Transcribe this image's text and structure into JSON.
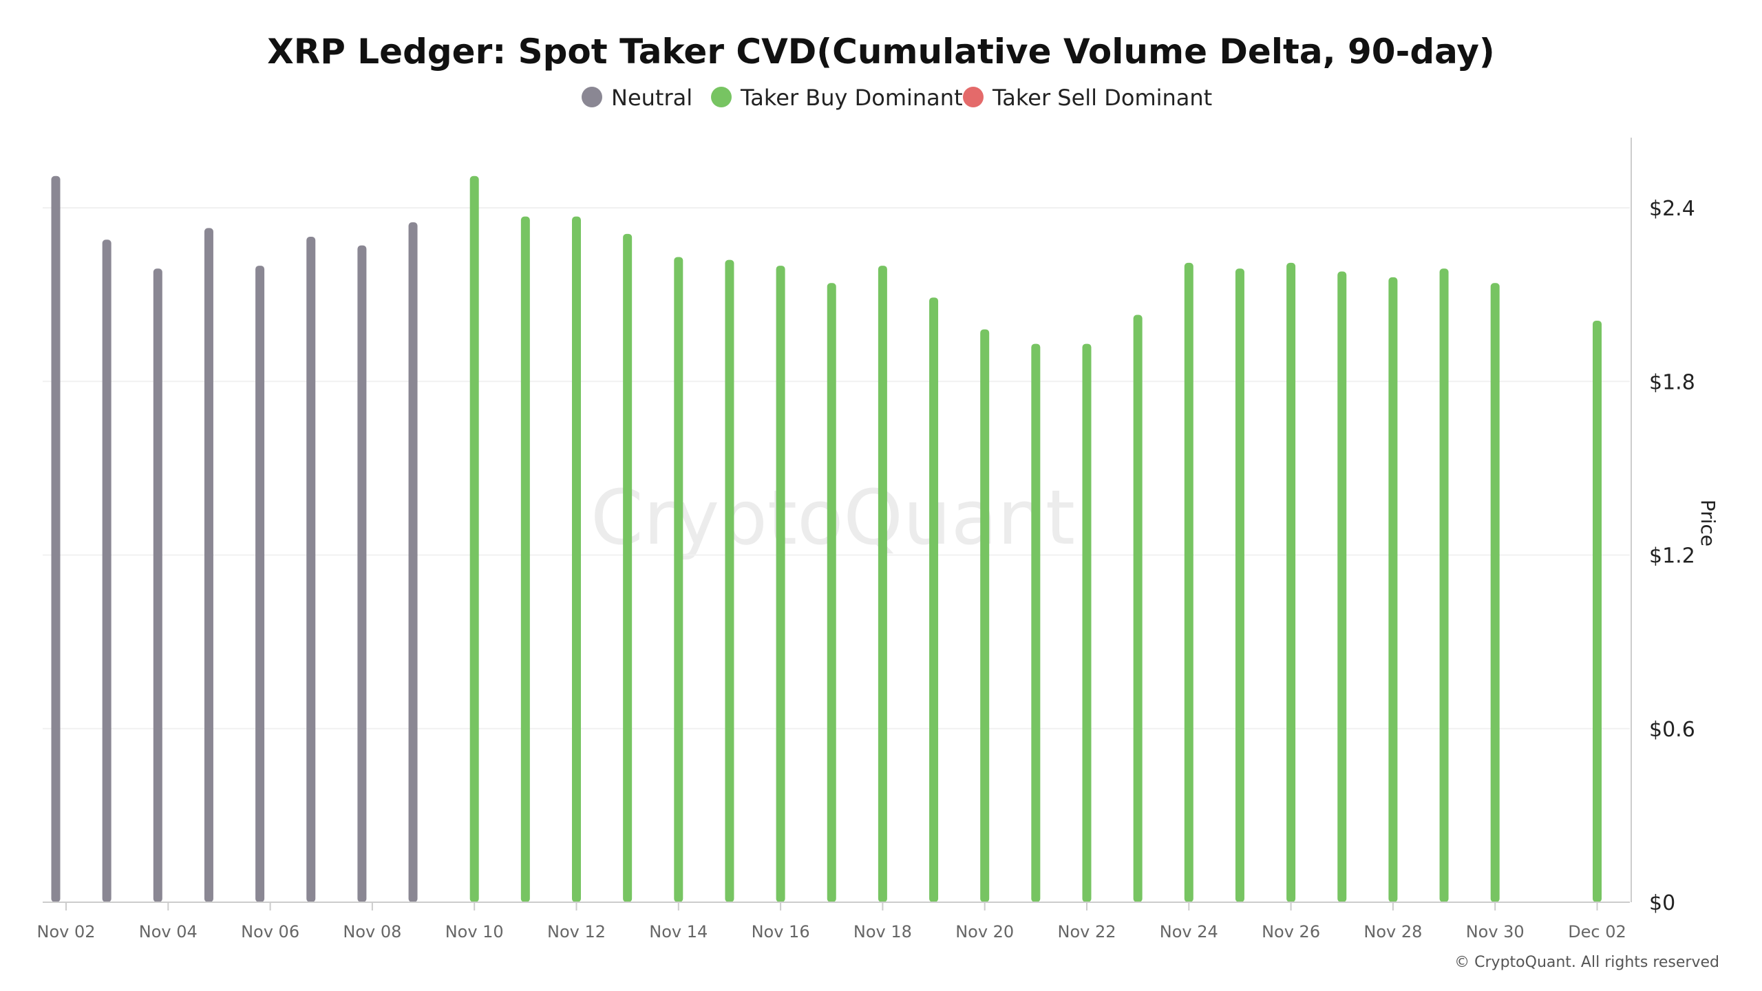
{
  "chart_data": {
    "type": "bar",
    "title": "XRP Ledger: Spot Taker CVD(Cumulative Volume Delta, 90-day)",
    "ylabel": "Price",
    "ylim": [
      0,
      2.64
    ],
    "yticks": [
      0,
      0.6,
      1.2,
      1.8,
      2.4
    ],
    "ytick_labels": [
      "$0",
      "$0.6",
      "$1.2",
      "$1.8",
      "$2.4"
    ],
    "y_axis_side": "right",
    "grid": true,
    "legend_placement": "top-center",
    "legend": [
      {
        "name": "Neutral",
        "color": "#8a8793"
      },
      {
        "name": "Taker Buy Dominant",
        "color": "#77c462"
      },
      {
        "name": "Taker Sell Dominant",
        "color": "#e46a6a"
      }
    ],
    "xtick_labels": [
      "Nov 02",
      "Nov 04",
      "Nov 06",
      "Nov 08",
      "Nov 10",
      "Nov 12",
      "Nov 14",
      "Nov 16",
      "Nov 18",
      "Nov 20",
      "Nov 22",
      "Nov 24",
      "Nov 26",
      "Nov 28",
      "Nov 30",
      "Dec 02"
    ],
    "categories": [
      "Nov 02",
      "Nov 03",
      "Nov 04",
      "Nov 05",
      "Nov 06",
      "Nov 07",
      "Nov 08",
      "Nov 09",
      "Nov 10",
      "Nov 11",
      "Nov 12",
      "Nov 13",
      "Nov 14",
      "Nov 15",
      "Nov 16",
      "Nov 17",
      "Nov 18",
      "Nov 19",
      "Nov 20",
      "Nov 21",
      "Nov 22",
      "Nov 23",
      "Nov 24",
      "Nov 25",
      "Nov 26",
      "Nov 27",
      "Nov 28",
      "Nov 29",
      "Nov 30",
      "Dec 01",
      "Dec 02"
    ],
    "values": [
      2.51,
      2.29,
      2.19,
      2.33,
      2.2,
      2.3,
      2.27,
      2.35,
      2.51,
      2.37,
      2.37,
      2.31,
      2.23,
      2.22,
      2.2,
      2.14,
      2.2,
      2.09,
      1.98,
      1.93,
      1.93,
      2.03,
      2.21,
      2.19,
      2.21,
      2.18,
      2.16,
      2.19,
      2.14,
      null,
      2.01
    ],
    "states": [
      "Neutral",
      "Neutral",
      "Neutral",
      "Neutral",
      "Neutral",
      "Neutral",
      "Neutral",
      "Neutral",
      "Taker Buy Dominant",
      "Taker Buy Dominant",
      "Taker Buy Dominant",
      "Taker Buy Dominant",
      "Taker Buy Dominant",
      "Taker Buy Dominant",
      "Taker Buy Dominant",
      "Taker Buy Dominant",
      "Taker Buy Dominant",
      "Taker Buy Dominant",
      "Taker Buy Dominant",
      "Taker Buy Dominant",
      "Taker Buy Dominant",
      "Taker Buy Dominant",
      "Taker Buy Dominant",
      "Taker Buy Dominant",
      "Taker Buy Dominant",
      "Taker Buy Dominant",
      "Taker Buy Dominant",
      "Taker Buy Dominant",
      "Taker Buy Dominant",
      null,
      "Taker Buy Dominant"
    ]
  },
  "watermark": "CryptoQuant",
  "copyright": "© CryptoQuant. All rights reserved"
}
